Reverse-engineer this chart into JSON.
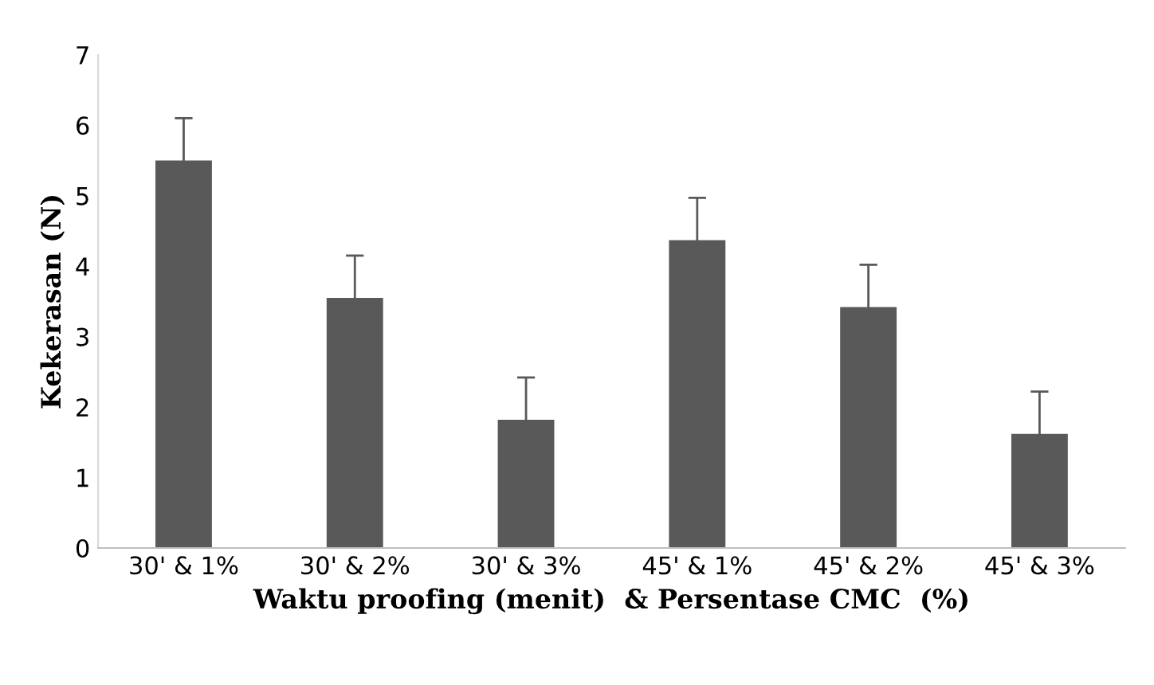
{
  "chart_data": {
    "type": "bar",
    "xlabel": "Waktu proofing (menit)  & Persentase CMC  (%)",
    "ylabel": "Kekerasan (N)",
    "categories": [
      "30' & 1%",
      "30' & 2%",
      "30' & 3%",
      "45' & 1%",
      "45' & 2%",
      "45' & 3%"
    ],
    "values": [
      5.5,
      3.55,
      1.82,
      4.37,
      3.42,
      1.62
    ],
    "errors": [
      0.6,
      0.6,
      0.6,
      0.6,
      0.6,
      0.6
    ],
    "color": "#595959",
    "ylim": [
      0,
      7
    ],
    "yticks": [
      0,
      1,
      2,
      3,
      4,
      5,
      6,
      7
    ],
    "grid": false,
    "legend": false
  }
}
